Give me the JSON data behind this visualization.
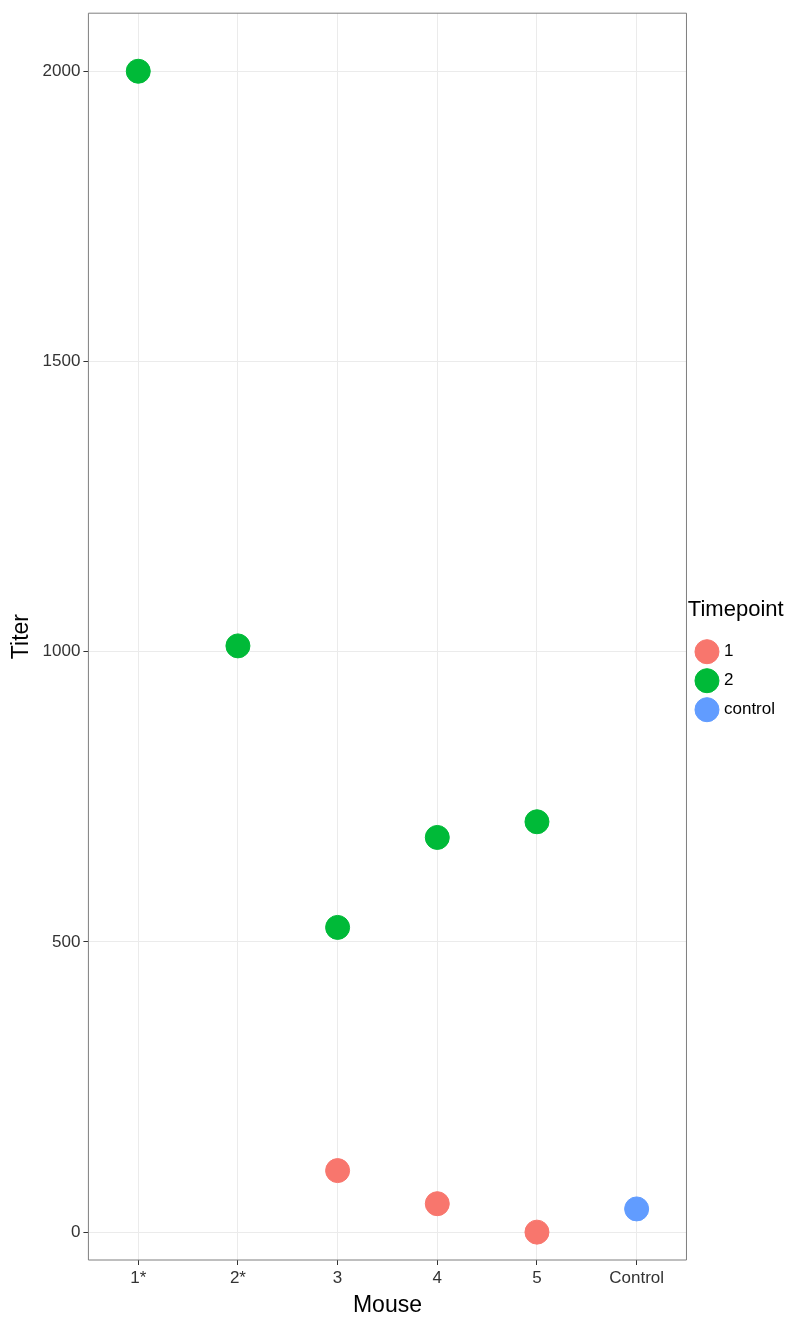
{
  "chart_data": {
    "type": "scatter",
    "xlabel": "Mouse",
    "ylabel": "Titer",
    "legend_title": "Timepoint",
    "categories": [
      "1*",
      "2*",
      "3",
      "4",
      "5",
      "Control"
    ],
    "series": [
      {
        "name": "1",
        "color": "#f8766d",
        "x": [
          "3",
          "4",
          "5"
        ],
        "values": [
          106,
          49,
          0
        ]
      },
      {
        "name": "2",
        "color": "#00ba38",
        "x": [
          "1*",
          "2*",
          "3",
          "4",
          "5"
        ],
        "values": [
          2000,
          1010,
          525,
          680,
          707
        ]
      },
      {
        "name": "control",
        "color": "#619cff",
        "x": [
          "Control"
        ],
        "values": [
          40
        ]
      }
    ],
    "ylim": [
      -48,
      2100
    ],
    "yticks": [
      0,
      500,
      1000,
      1500,
      2000
    ],
    "grid": true,
    "legend": "right",
    "marker": "circle"
  }
}
